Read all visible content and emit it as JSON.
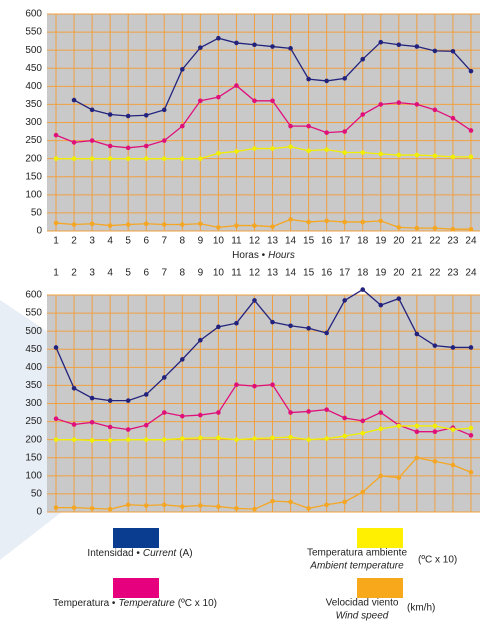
{
  "chart_data": [
    {
      "type": "line",
      "x_label_position": "bottom",
      "xlabel_es": "Horas •",
      "xlabel_en": "Hours",
      "x": [
        1,
        2,
        3,
        4,
        5,
        6,
        7,
        8,
        9,
        10,
        11,
        12,
        13,
        14,
        15,
        16,
        17,
        18,
        19,
        20,
        21,
        22,
        23,
        24
      ],
      "xlim": [
        0.5,
        24.5
      ],
      "xticks": [
        1,
        2,
        3,
        4,
        5,
        6,
        7,
        8,
        9,
        10,
        11,
        12,
        13,
        14,
        15,
        16,
        17,
        18,
        19,
        20,
        21,
        22,
        23,
        24
      ],
      "ylim": [
        0,
        600
      ],
      "yticks": [
        0,
        50,
        100,
        150,
        200,
        250,
        300,
        350,
        400,
        450,
        500,
        550,
        600
      ],
      "grid": true,
      "series": [
        {
          "name": "Intensidad •",
          "name_en": "Current",
          "unit": "(A)",
          "color": "#23237e",
          "legend_color": "#0a3d8f",
          "values": [
            null,
            362,
            335,
            322,
            318,
            320,
            335,
            447,
            507,
            533,
            520,
            515,
            510,
            505,
            420,
            415,
            422,
            475,
            522,
            515,
            510,
            498,
            497,
            442
          ]
        },
        {
          "name": "Temperatura •",
          "name_en": "Temperature",
          "unit": "(ºC x 10)",
          "color": "#e0107a",
          "legend_color": "#e6007e",
          "values": [
            265,
            245,
            250,
            235,
            230,
            235,
            250,
            290,
            360,
            370,
            402,
            360,
            360,
            290,
            290,
            272,
            275,
            322,
            350,
            355,
            350,
            335,
            312,
            278
          ]
        },
        {
          "name": "Temperatura ambiente",
          "name_en": "Ambient temperature",
          "unit": "(ºC x 10)",
          "color": "#f2ee00",
          "legend_color": "#ffef00",
          "values": [
            200,
            200,
            200,
            200,
            200,
            200,
            200,
            200,
            200,
            215,
            220,
            228,
            228,
            233,
            222,
            225,
            217,
            217,
            213,
            210,
            210,
            208,
            205,
            205
          ]
        },
        {
          "name": "Velocidad viento",
          "name_en": "Wind speed",
          "unit": "(km/h)",
          "color": "#f5a623",
          "legend_color": "#f7a81b",
          "values": [
            22,
            18,
            20,
            15,
            18,
            20,
            18,
            18,
            20,
            10,
            15,
            15,
            12,
            32,
            25,
            28,
            25,
            25,
            28,
            10,
            8,
            8,
            5,
            5
          ]
        }
      ]
    },
    {
      "type": "line",
      "x_label_position": "top",
      "x": [
        1,
        2,
        3,
        4,
        5,
        6,
        7,
        8,
        9,
        10,
        11,
        12,
        13,
        14,
        15,
        16,
        17,
        18,
        19,
        20,
        21,
        22,
        23,
        24
      ],
      "xlim": [
        0.5,
        24.5
      ],
      "xticks": [
        1,
        2,
        3,
        4,
        5,
        6,
        7,
        8,
        9,
        10,
        11,
        12,
        13,
        14,
        15,
        16,
        17,
        18,
        19,
        20,
        21,
        22,
        23,
        24
      ],
      "ylim": [
        0,
        600
      ],
      "yticks": [
        0,
        50,
        100,
        150,
        200,
        250,
        300,
        350,
        400,
        450,
        500,
        550,
        600
      ],
      "grid": true,
      "series": [
        {
          "color": "#23237e",
          "values": [
            455,
            342,
            315,
            308,
            308,
            325,
            372,
            422,
            475,
            512,
            522,
            585,
            525,
            515,
            508,
            495,
            585,
            615,
            572,
            590,
            492,
            460,
            455,
            455
          ]
        },
        {
          "color": "#e0107a",
          "values": [
            258,
            242,
            248,
            235,
            228,
            240,
            275,
            265,
            268,
            275,
            352,
            348,
            352,
            275,
            278,
            283,
            260,
            252,
            275,
            240,
            222,
            222,
            233,
            212
          ]
        },
        {
          "color": "#f2ee00",
          "values": [
            200,
            200,
            198,
            198,
            200,
            200,
            200,
            203,
            205,
            205,
            200,
            203,
            205,
            207,
            200,
            203,
            210,
            218,
            230,
            238,
            238,
            238,
            228,
            232
          ]
        },
        {
          "color": "#f5a623",
          "values": [
            12,
            12,
            10,
            8,
            20,
            18,
            20,
            15,
            18,
            15,
            10,
            8,
            30,
            28,
            10,
            20,
            28,
            55,
            100,
            95,
            150,
            140,
            130,
            110
          ]
        }
      ]
    }
  ]
}
